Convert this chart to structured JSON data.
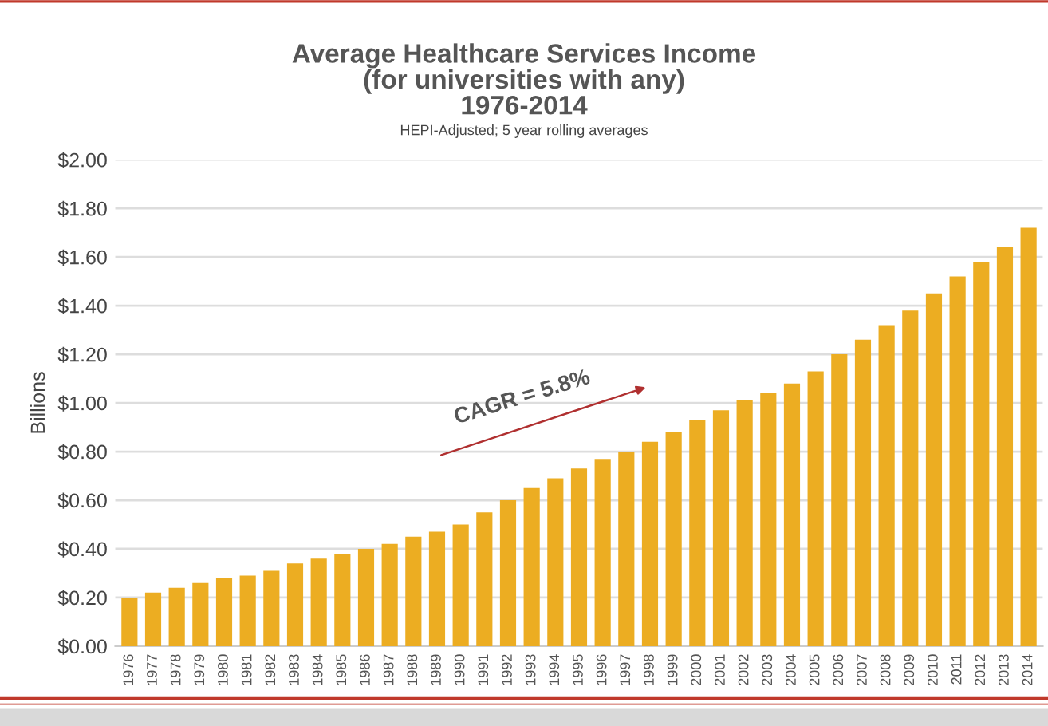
{
  "chart_data": {
    "type": "bar",
    "title": "Average Healthcare Services Income\n(for universities with any)\n1976-2014",
    "subtitle": "HEPI-Adjusted; 5 year rolling averages",
    "ylabel": "Billions",
    "categories": [
      "1976",
      "1977",
      "1978",
      "1979",
      "1980",
      "1981",
      "1982",
      "1983",
      "1984",
      "1985",
      "1986",
      "1987",
      "1988",
      "1989",
      "1990",
      "1991",
      "1992",
      "1993",
      "1994",
      "1995",
      "1996",
      "1997",
      "1998",
      "1999",
      "2000",
      "2001",
      "2002",
      "2003",
      "2004",
      "2005",
      "2006",
      "2007",
      "2008",
      "2009",
      "2010",
      "2011",
      "2012",
      "2013",
      "2014"
    ],
    "values": [
      0.2,
      0.22,
      0.24,
      0.26,
      0.28,
      0.29,
      0.31,
      0.34,
      0.36,
      0.38,
      0.4,
      0.42,
      0.45,
      0.47,
      0.5,
      0.55,
      0.6,
      0.65,
      0.69,
      0.73,
      0.77,
      0.8,
      0.84,
      0.88,
      0.93,
      0.97,
      1.01,
      1.04,
      1.08,
      1.13,
      1.2,
      1.26,
      1.32,
      1.38,
      1.45,
      1.52,
      1.58,
      1.64,
      1.72
    ],
    "color": "#ecad22",
    "ylim": [
      0,
      2.0
    ],
    "yticks": [
      {
        "value": 0,
        "label": "$0.00"
      },
      {
        "value": 0.2,
        "label": "$0.20"
      },
      {
        "value": 0.4,
        "label": "$0.40"
      },
      {
        "value": 0.6,
        "label": "$0.60"
      },
      {
        "value": 0.8,
        "label": "$0.80"
      },
      {
        "value": 1.0,
        "label": "$1.00"
      },
      {
        "value": 1.2,
        "label": "$1.20"
      },
      {
        "value": 1.4,
        "label": "$1.40"
      },
      {
        "value": 1.6,
        "label": "$1.60"
      },
      {
        "value": 1.8,
        "label": "$1.80"
      },
      {
        "value": 2.0,
        "label": "$2.00"
      }
    ],
    "grid": "y",
    "annotations": [
      "CAGR = 5.8%"
    ]
  }
}
